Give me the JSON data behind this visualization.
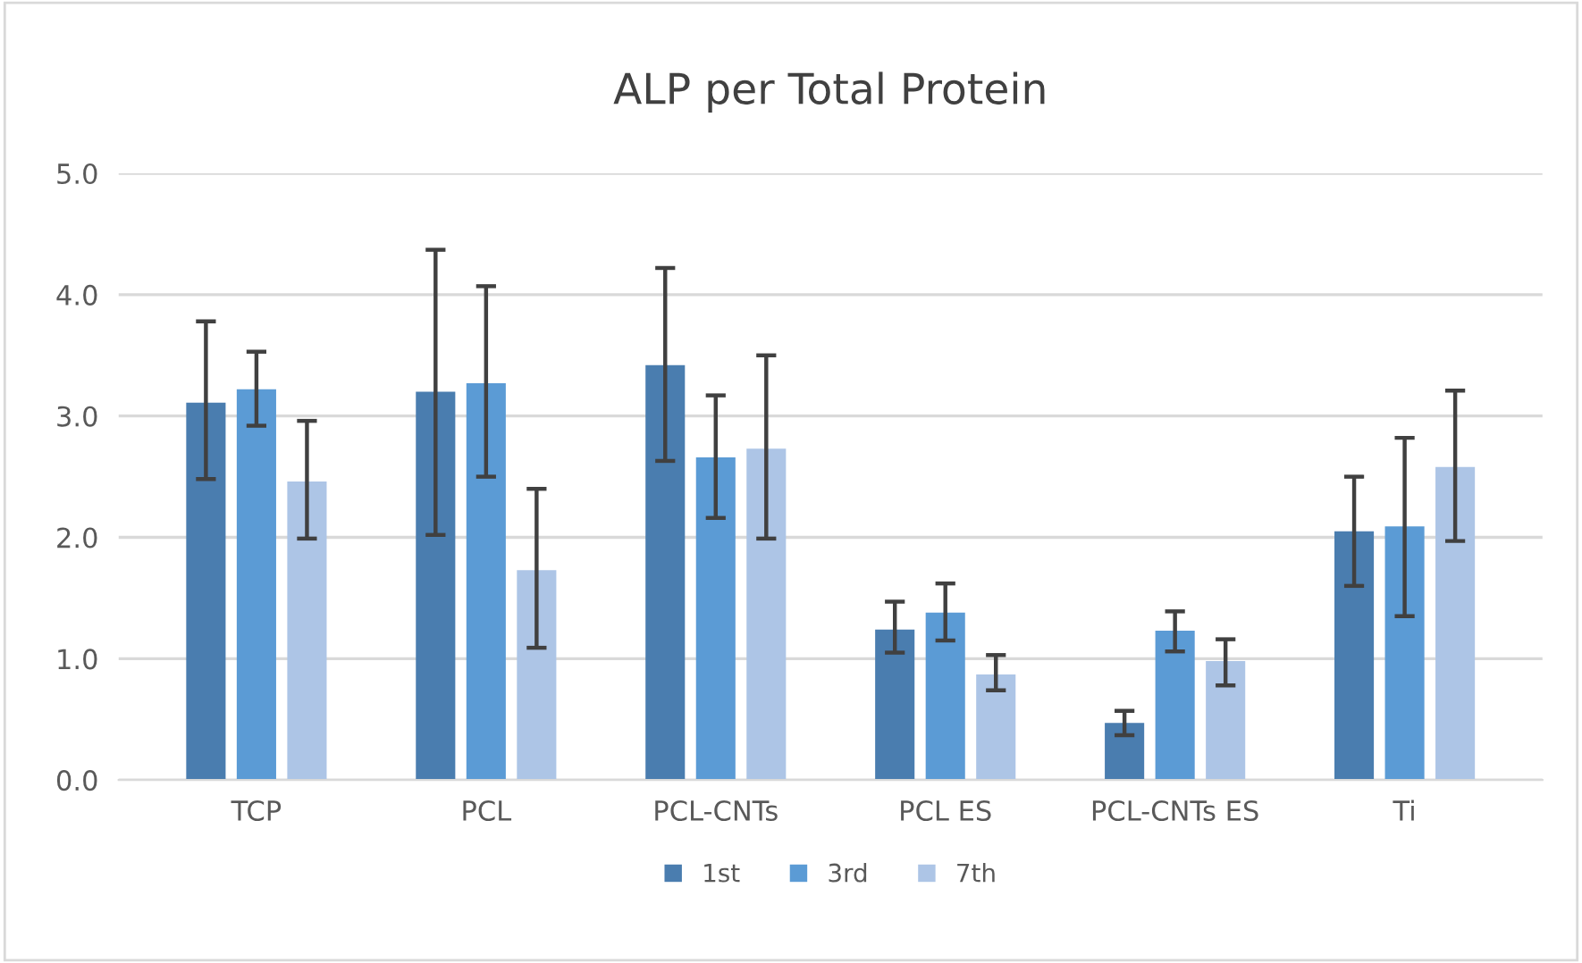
{
  "chart_data": {
    "type": "bar",
    "title": "ALP per Total Protein",
    "categories": [
      "TCP",
      "PCL",
      "PCL-CNTs",
      "PCL ES",
      "PCL-CNTs ES",
      "Ti"
    ],
    "series": [
      {
        "name": "1st",
        "color": "#4a7daf",
        "values": [
          3.11,
          3.2,
          3.42,
          1.24,
          0.47,
          2.05
        ],
        "errors": [
          [
            2.48,
            3.78
          ],
          [
            2.02,
            4.37
          ],
          [
            2.63,
            4.22
          ],
          [
            1.05,
            1.47
          ],
          [
            0.37,
            0.57
          ],
          [
            1.6,
            2.5
          ]
        ]
      },
      {
        "name": "3rd",
        "color": "#5b9bd5",
        "values": [
          3.22,
          3.27,
          2.66,
          1.38,
          1.23,
          2.09
        ],
        "errors": [
          [
            2.92,
            3.53
          ],
          [
            2.5,
            4.07
          ],
          [
            2.16,
            3.17
          ],
          [
            1.15,
            1.62
          ],
          [
            1.06,
            1.39
          ],
          [
            1.35,
            2.82
          ]
        ]
      },
      {
        "name": "7th",
        "color": "#adc5e6",
        "values": [
          2.46,
          1.73,
          2.73,
          0.87,
          0.98,
          2.58
        ],
        "errors": [
          [
            1.99,
            2.96
          ],
          [
            1.09,
            2.4
          ],
          [
            1.99,
            3.5
          ],
          [
            0.74,
            1.03
          ],
          [
            0.78,
            1.16
          ],
          [
            1.97,
            3.21
          ]
        ]
      }
    ],
    "ylim": [
      0,
      5
    ],
    "yticks": [
      {
        "value": 0,
        "label": "0.0"
      },
      {
        "value": 1,
        "label": "1.0"
      },
      {
        "value": 2,
        "label": "2.0"
      },
      {
        "value": 3,
        "label": "3.0"
      },
      {
        "value": 4,
        "label": "4.0"
      },
      {
        "value": 5,
        "label": "5.0"
      }
    ],
    "grid": "y",
    "legend": "bottom"
  }
}
